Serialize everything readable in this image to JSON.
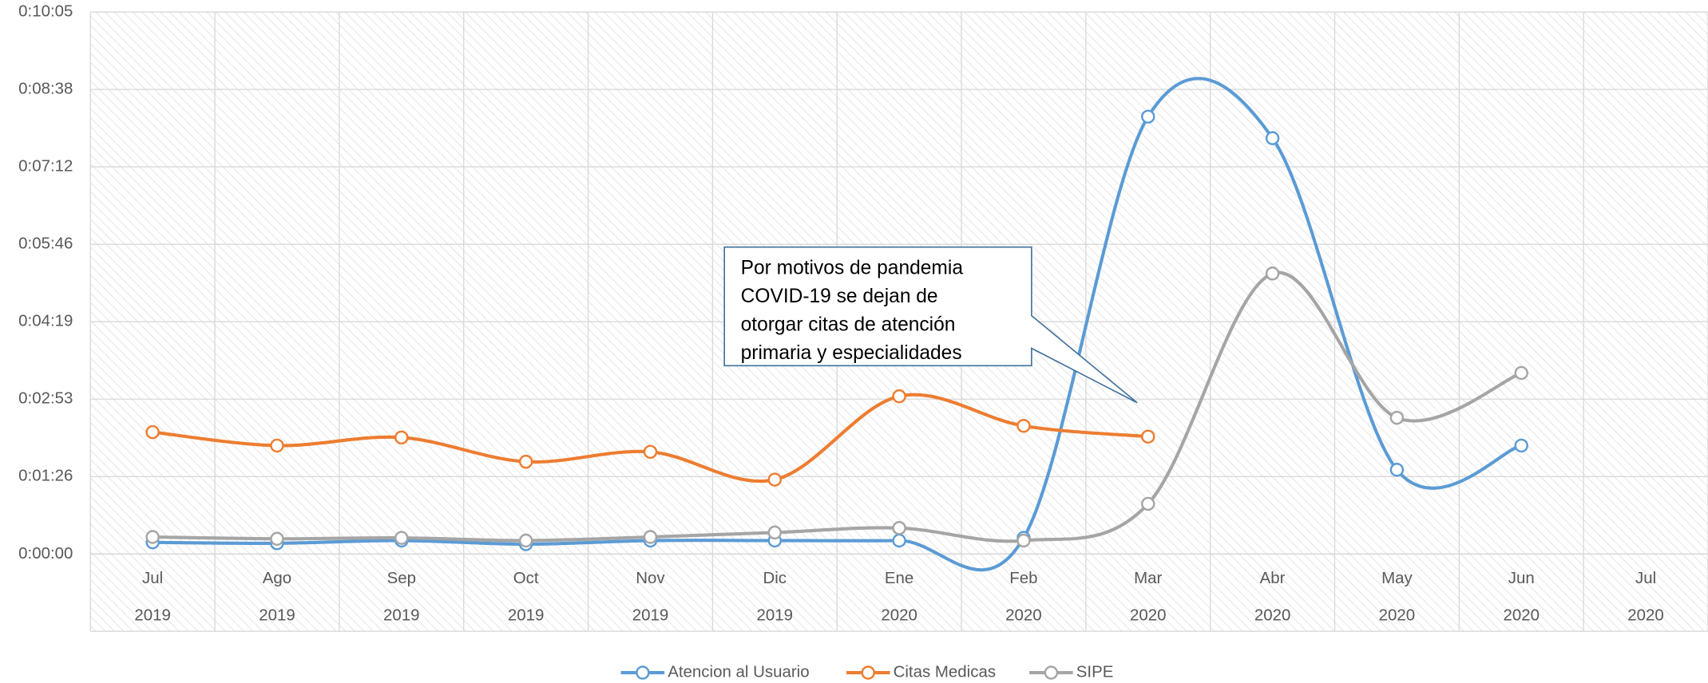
{
  "chart_data": {
    "type": "line",
    "categories": [
      "Jul",
      "Ago",
      "Sep",
      "Oct",
      "Nov",
      "Dic",
      "Ene",
      "Feb",
      "Mar",
      "Abr",
      "May",
      "Jun",
      "Jul"
    ],
    "years": [
      "2019",
      "2019",
      "2019",
      "2019",
      "2019",
      "2019",
      "2020",
      "2020",
      "2020",
      "2020",
      "2020",
      "2020",
      "2020"
    ],
    "series": [
      {
        "name": "Atencion al Usuario",
        "color": "#5b9bd5",
        "values": [
          13,
          12,
          15,
          11,
          15,
          15,
          15,
          18,
          488,
          464,
          94,
          121,
          null
        ]
      },
      {
        "name": "Citas Medicas",
        "color": "#ed7d31",
        "values": [
          136,
          121,
          130,
          103,
          114,
          83,
          176,
          143,
          131,
          null,
          null,
          null,
          null
        ]
      },
      {
        "name": "SIPE",
        "color": "#a5a5a5",
        "values": [
          19,
          17,
          18,
          15,
          19,
          24,
          29,
          15,
          56,
          313,
          152,
          202,
          null
        ]
      }
    ],
    "ylim": [
      0,
      604.8
    ],
    "yticks": [
      {
        "value": 0,
        "label": "0:00:00"
      },
      {
        "value": 86.4,
        "label": "0:01:26"
      },
      {
        "value": 172.8,
        "label": "0:02:53"
      },
      {
        "value": 259.2,
        "label": "0:04:19"
      },
      {
        "value": 345.6,
        "label": "0:05:46"
      },
      {
        "value": 432,
        "label": "0:07:12"
      },
      {
        "value": 518.4,
        "label": "0:08:38"
      },
      {
        "value": 604.8,
        "label": "0:10:05"
      }
    ],
    "grid": true,
    "smooth": true,
    "legend": "bottom",
    "annotation": [
      "Por motivos de pandemia",
      "COVID-19 se dejan de",
      "otorgar citas de atención",
      "primaria y especialidades"
    ]
  }
}
